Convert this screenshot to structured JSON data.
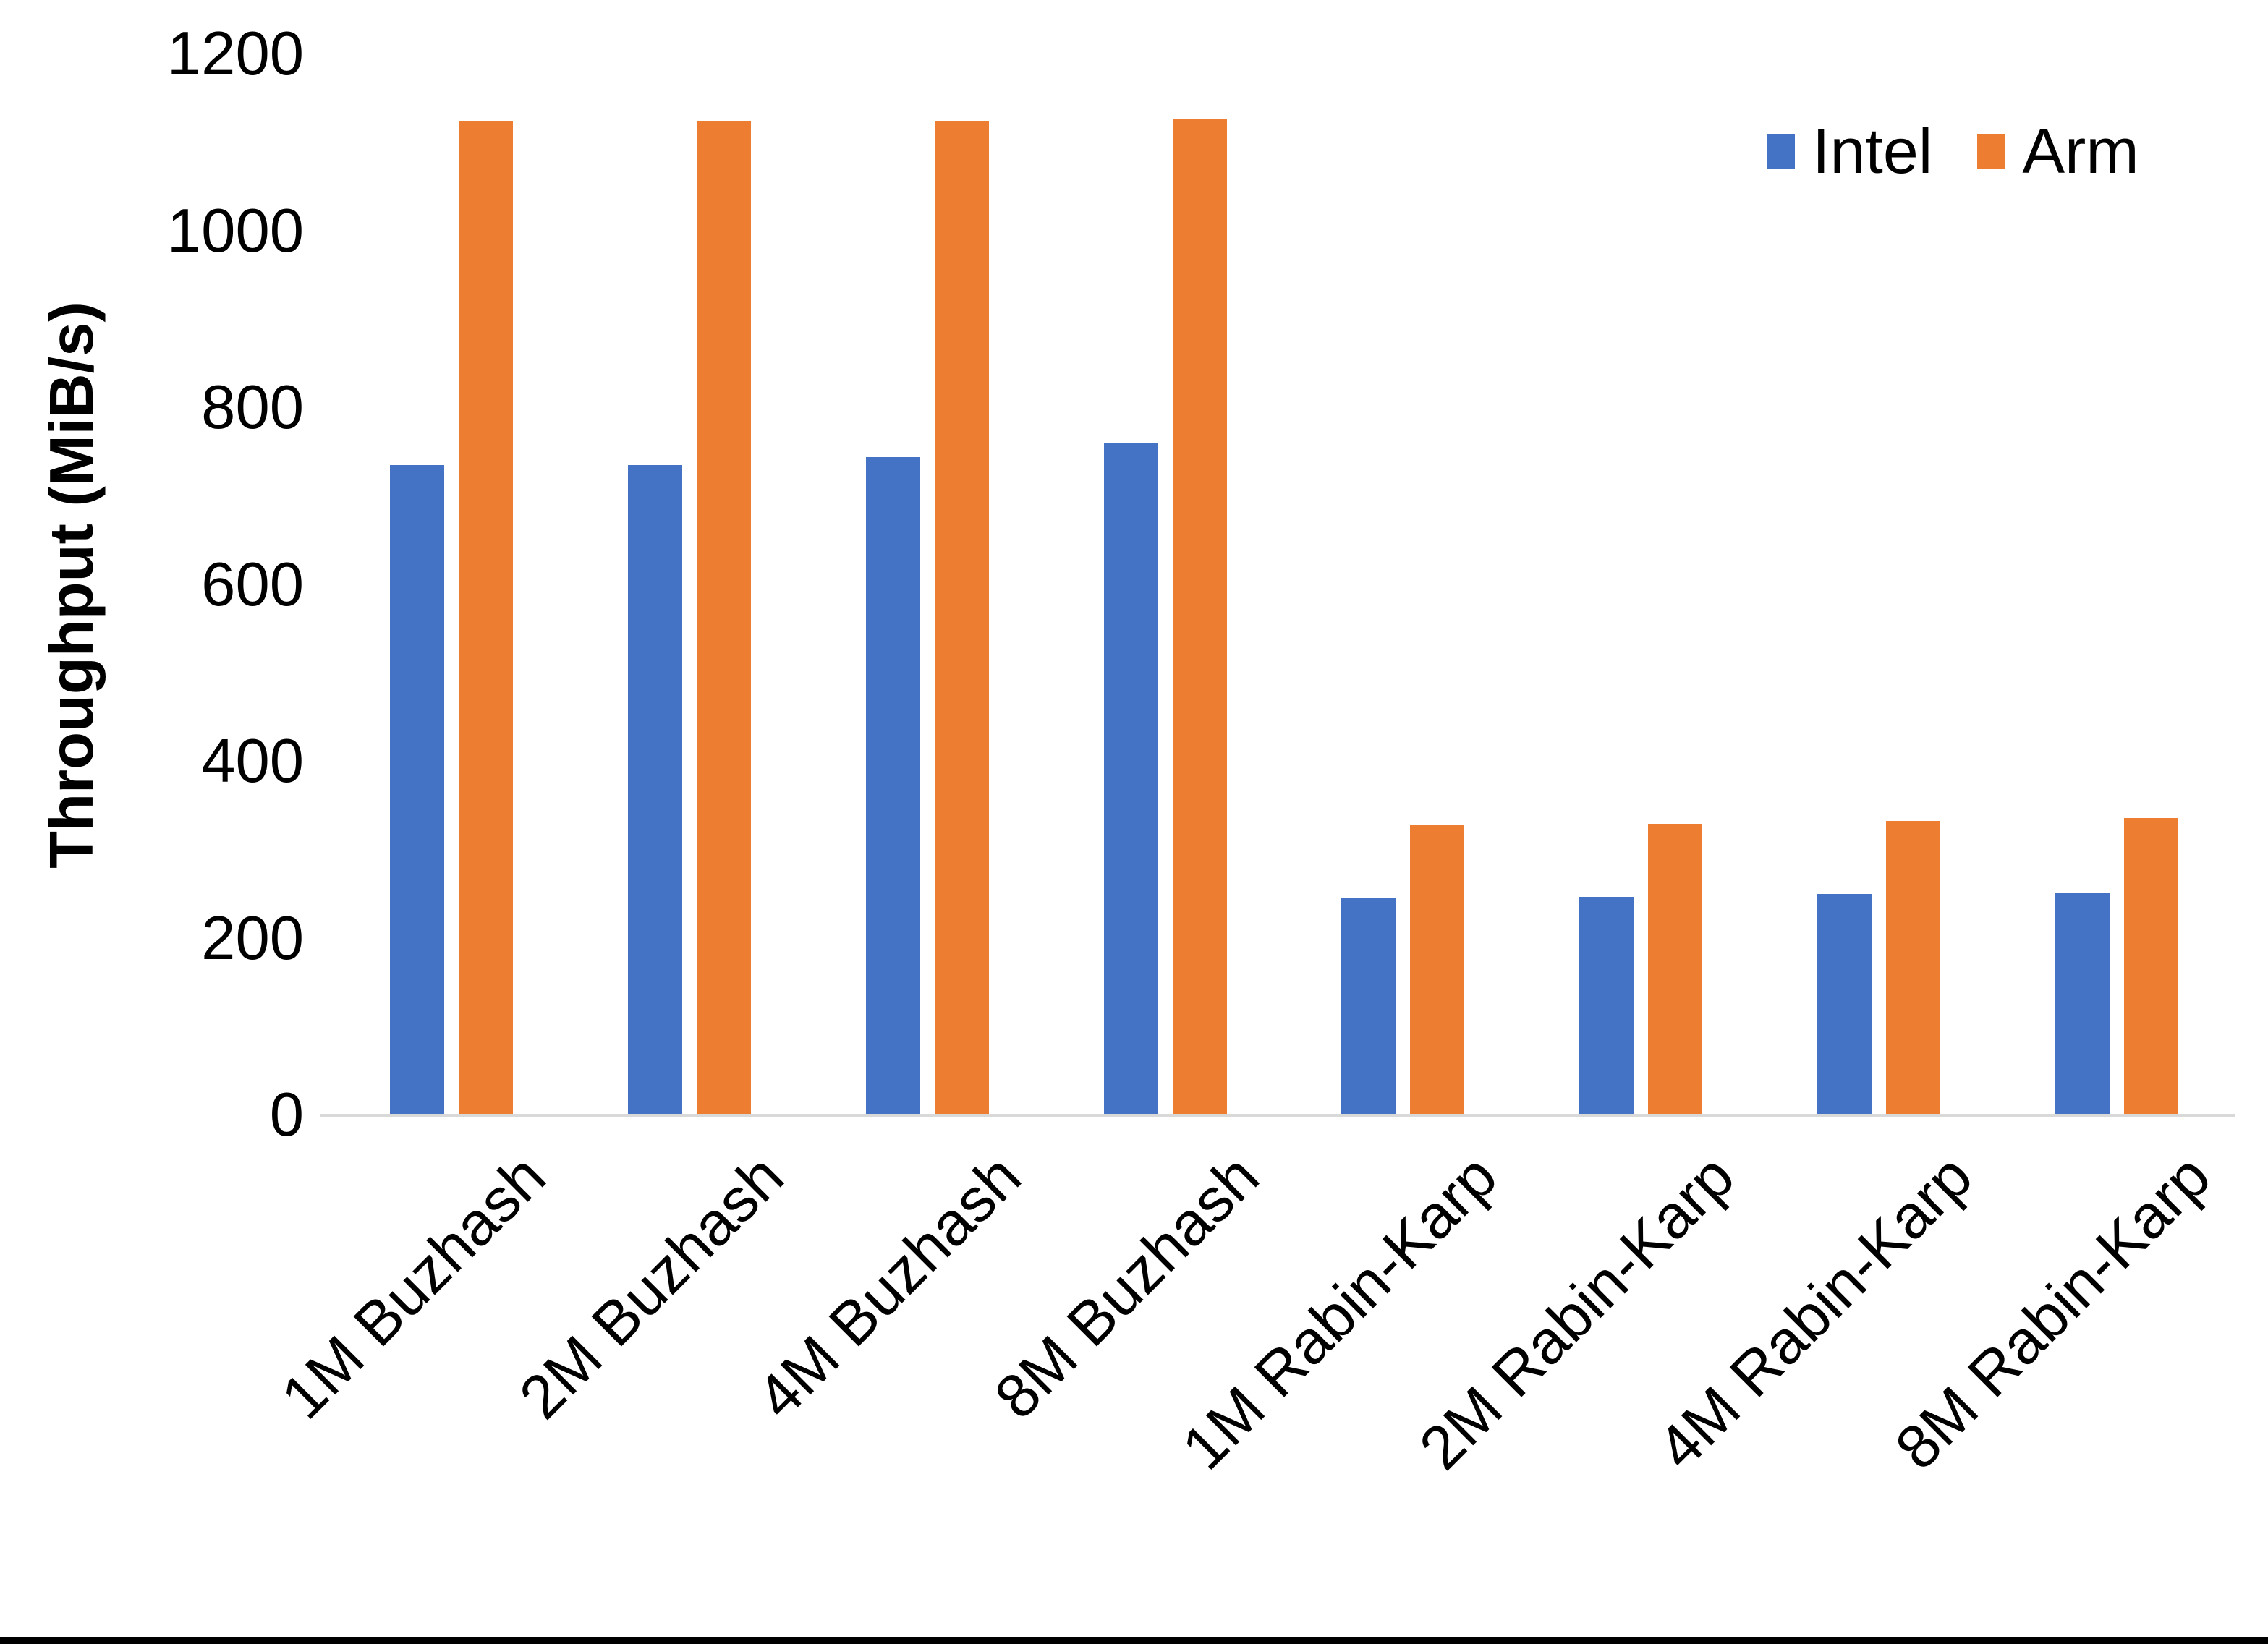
{
  "chart_data": {
    "type": "bar",
    "title": "",
    "ylabel": "Throughput (MiB/s)",
    "xlabel": "",
    "categories": [
      "1M Buzhash",
      "2M Buzhash",
      "4M Buzhash",
      "8M Buzhash",
      "1M Rabin-Karp",
      "2M Rabin-Karp",
      "4M Rabin-Karp",
      "8M Rabin-Karp"
    ],
    "series": [
      {
        "name": "Intel",
        "color": "#4472C4",
        "values": [
          735,
          735,
          744,
          760,
          246,
          247,
          250,
          252
        ]
      },
      {
        "name": "Arm",
        "color": "#ED7D31",
        "values": [
          1125,
          1125,
          1125,
          1126,
          328,
          330,
          333,
          336
        ]
      }
    ],
    "y_ticks": [
      0,
      200,
      400,
      600,
      800,
      1000,
      1200
    ],
    "ylim": [
      0,
      1200
    ],
    "grid": false,
    "legend_position": "top-right",
    "axis_line_color": "#D9D9D9"
  }
}
